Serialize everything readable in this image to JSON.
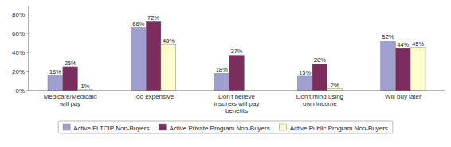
{
  "chart_data": {
    "type": "bar",
    "categories": [
      "Medicare/Medicaid\nwill pay",
      "Too expensive",
      "Don't believe\ninsurers will pay\nbenefits",
      "Don't mind using\nown income",
      "Will buy later"
    ],
    "series": [
      {
        "name": "Active FLTCIP Non-Buyers",
        "color": "#A0A0D0",
        "values": [
          16,
          66,
          18,
          15,
          52
        ],
        "value_labels": [
          "16%",
          "66%",
          "18%",
          "15%",
          "52%"
        ]
      },
      {
        "name": "Active Private Program Non-Buyers",
        "color": "#7B2D5E",
        "values": [
          25,
          72,
          37,
          28,
          44
        ],
        "value_labels": [
          "25%",
          "72%",
          "37%",
          "28%",
          "44%"
        ]
      },
      {
        "name": "Active Public Program Non-Buyers",
        "color": "#FFFFCC",
        "values": [
          1,
          48,
          0,
          2,
          45
        ],
        "value_labels": [
          "1%",
          "48%",
          null,
          "2%",
          "45%"
        ]
      }
    ],
    "ylim": [
      0,
      88
    ],
    "yticks": [
      {
        "value": 0,
        "label": "0%"
      },
      {
        "value": 20,
        "label": "20%"
      },
      {
        "value": 40,
        "label": "40%"
      },
      {
        "value": 60,
        "label": "60%"
      },
      {
        "value": 80,
        "label": "80%"
      }
    ],
    "grid": false,
    "legend": "bottom",
    "data_labels": true
  }
}
